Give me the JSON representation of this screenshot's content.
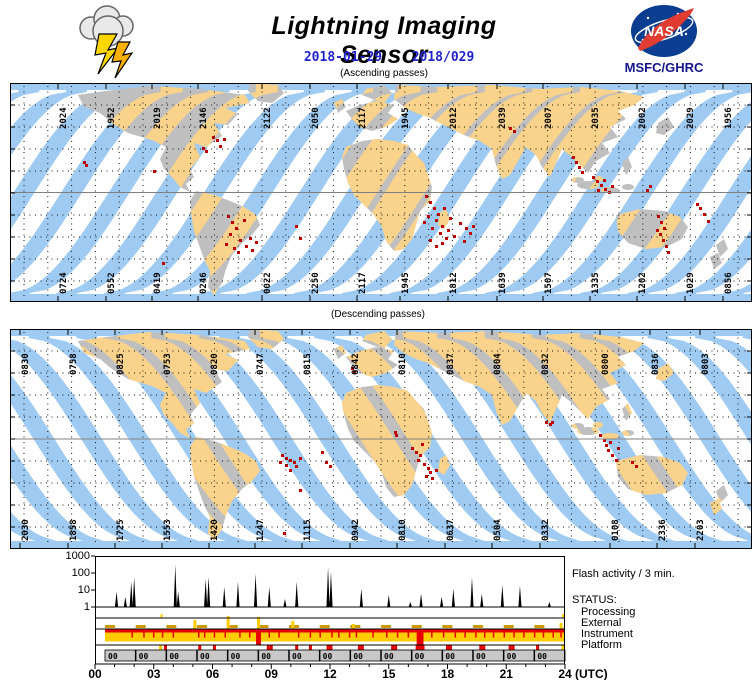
{
  "header": {
    "title": "Lightning Imaging Sensor",
    "date_iso": "2018-01-29",
    "date_doy": "2018/029",
    "org": "MSFC/GHRC",
    "logo_icon": "nasa-meatball",
    "left_icon": "storm-cloud-lightning"
  },
  "colors": {
    "swath_blue": "#9FCBF3",
    "swath_orange": "#F9D38B",
    "land_gray": "#BFBFBF",
    "flash_red": "#C00000",
    "status_yellow": "#FFCC00",
    "status_red": "#E80000",
    "status_gold": "#CC9900",
    "platform_gray": "#C8C8C8",
    "date_blue": "#2222CC",
    "org_navy": "#14148C"
  },
  "maps": [
    {
      "caption": "(Ascending passes)",
      "direction": "ascending",
      "top_labels": [
        [
          "2024",
          48
        ],
        [
          "1952",
          96
        ],
        [
          "2019",
          142
        ],
        [
          "2146",
          188
        ],
        [
          "2122",
          252
        ],
        [
          "2050",
          300
        ],
        [
          "2117",
          347
        ],
        [
          "1945",
          390
        ],
        [
          "2012",
          438
        ],
        [
          "2039",
          487
        ],
        [
          "2007",
          533
        ],
        [
          "2035",
          580
        ],
        [
          "2002",
          627
        ],
        [
          "2029",
          675
        ],
        [
          "1956",
          713
        ]
      ],
      "bottom_labels": [
        [
          "0724",
          48
        ],
        [
          "0552",
          96
        ],
        [
          "0419",
          142
        ],
        [
          "0246",
          188
        ],
        [
          "0022",
          252
        ],
        [
          "2250",
          300
        ],
        [
          "2117",
          347
        ],
        [
          "1945",
          390
        ],
        [
          "1812",
          438
        ],
        [
          "1639",
          487
        ],
        [
          "1507",
          533
        ],
        [
          "1335",
          580
        ],
        [
          "1202",
          627
        ],
        [
          "1029",
          675
        ],
        [
          "0856",
          713
        ]
      ],
      "flash_dots": [
        [
          74,
          79
        ],
        [
          76,
          82
        ],
        [
          144,
          88
        ],
        [
          153,
          180
        ],
        [
          193,
          65
        ],
        [
          196,
          68
        ],
        [
          203,
          54
        ],
        [
          207,
          57
        ],
        [
          210,
          63
        ],
        [
          214,
          56
        ],
        [
          218,
          133
        ],
        [
          222,
          139
        ],
        [
          226,
          145
        ],
        [
          220,
          151
        ],
        [
          230,
          157
        ],
        [
          236,
          163
        ],
        [
          228,
          169
        ],
        [
          216,
          161
        ],
        [
          240,
          155
        ],
        [
          234,
          137
        ],
        [
          224,
          165
        ],
        [
          242,
          167
        ],
        [
          246,
          159
        ],
        [
          286,
          143
        ],
        [
          290,
          155
        ],
        [
          416,
          113
        ],
        [
          420,
          119
        ],
        [
          424,
          125
        ],
        [
          428,
          131
        ],
        [
          426,
          137
        ],
        [
          432,
          143
        ],
        [
          422,
          145
        ],
        [
          430,
          150
        ],
        [
          436,
          155
        ],
        [
          418,
          133
        ],
        [
          414,
          139
        ],
        [
          434,
          125
        ],
        [
          440,
          135
        ],
        [
          438,
          147
        ],
        [
          432,
          160
        ],
        [
          444,
          153
        ],
        [
          450,
          140
        ],
        [
          456,
          145
        ],
        [
          460,
          150
        ],
        [
          454,
          158
        ],
        [
          463,
          143
        ],
        [
          426,
          163
        ],
        [
          420,
          157
        ],
        [
          500,
          45
        ],
        [
          504,
          48
        ],
        [
          563,
          74
        ],
        [
          566,
          79
        ],
        [
          569,
          84
        ],
        [
          572,
          89
        ],
        [
          583,
          94
        ],
        [
          587,
          98
        ],
        [
          591,
          102
        ],
        [
          595,
          106
        ],
        [
          599,
          109
        ],
        [
          588,
          107
        ],
        [
          594,
          97
        ],
        [
          602,
          103
        ],
        [
          637,
          107
        ],
        [
          640,
          103
        ],
        [
          648,
          133
        ],
        [
          651,
          139
        ],
        [
          654,
          145
        ],
        [
          650,
          151
        ],
        [
          653,
          157
        ],
        [
          656,
          163
        ],
        [
          647,
          147
        ],
        [
          690,
          125
        ],
        [
          694,
          131
        ],
        [
          698,
          138
        ],
        [
          658,
          169
        ],
        [
          687,
          121
        ]
      ]
    },
    {
      "caption": "(Descending passes)",
      "direction": "descending",
      "top_labels": [
        [
          "0830",
          10
        ],
        [
          "0758",
          58
        ],
        [
          "0825",
          105
        ],
        [
          "0753",
          152
        ],
        [
          "0820",
          199
        ],
        [
          "0747",
          245
        ],
        [
          "0815",
          292
        ],
        [
          "0842",
          340
        ],
        [
          "0810",
          387
        ],
        [
          "0837",
          435
        ],
        [
          "0804",
          482
        ],
        [
          "0832",
          530
        ],
        [
          "0800",
          590
        ],
        [
          "0836",
          640
        ],
        [
          "0803",
          690
        ]
      ],
      "bottom_labels": [
        [
          "2030",
          10
        ],
        [
          "1858",
          58
        ],
        [
          "1725",
          105
        ],
        [
          "1553",
          152
        ],
        [
          "1420",
          199
        ],
        [
          "1247",
          245
        ],
        [
          "1115",
          292
        ],
        [
          "0942",
          340
        ],
        [
          "0810",
          387
        ],
        [
          "0637",
          435
        ],
        [
          "0504",
          482
        ],
        [
          "0332",
          530
        ],
        [
          "0108",
          600
        ],
        [
          "2336",
          647
        ],
        [
          "2203",
          685
        ]
      ],
      "flash_dots": [
        [
          342,
          39
        ],
        [
          344,
          43
        ],
        [
          272,
          126
        ],
        [
          276,
          129
        ],
        [
          280,
          131
        ],
        [
          284,
          133
        ],
        [
          276,
          136
        ],
        [
          270,
          133
        ],
        [
          286,
          137
        ],
        [
          290,
          129
        ],
        [
          280,
          141
        ],
        [
          312,
          123
        ],
        [
          316,
          133
        ],
        [
          320,
          137
        ],
        [
          290,
          161
        ],
        [
          274,
          204
        ],
        [
          386,
          106
        ],
        [
          402,
          119
        ],
        [
          406,
          123
        ],
        [
          410,
          126
        ],
        [
          408,
          131
        ],
        [
          414,
          135
        ],
        [
          418,
          139
        ],
        [
          420,
          143
        ],
        [
          416,
          147
        ],
        [
          422,
          149
        ],
        [
          426,
          141
        ],
        [
          412,
          115
        ],
        [
          385,
          103
        ],
        [
          536,
          93
        ],
        [
          540,
          95
        ],
        [
          542,
          93
        ],
        [
          590,
          106
        ],
        [
          594,
          111
        ],
        [
          596,
          116
        ],
        [
          598,
          121
        ],
        [
          602,
          126
        ],
        [
          606,
          131
        ],
        [
          600,
          113
        ],
        [
          608,
          119
        ],
        [
          622,
          133
        ],
        [
          626,
          137
        ]
      ]
    }
  ],
  "chart_data": [
    {
      "type": "line",
      "title": "Flash activity / 3 min.",
      "y_ticks": [
        "1000",
        "100",
        "10",
        "1"
      ],
      "y_log": true,
      "ylim": [
        1,
        1000
      ],
      "xlim": [
        0,
        24
      ],
      "x_ticks": [
        "00",
        "03",
        "06",
        "09",
        "12",
        "15",
        "18",
        "21",
        "24"
      ],
      "x_unit": "(UTC)",
      "series": [
        {
          "name": "flash_rate_per_3min",
          "points": [
            [
              1.1,
              8
            ],
            [
              1.55,
              4
            ],
            [
              1.85,
              30
            ],
            [
              2.0,
              55
            ],
            [
              4.1,
              300
            ],
            [
              4.25,
              8
            ],
            [
              5.65,
              45
            ],
            [
              5.8,
              60
            ],
            [
              6.6,
              15
            ],
            [
              7.3,
              30
            ],
            [
              8.2,
              90
            ],
            [
              8.9,
              15
            ],
            [
              9.7,
              3
            ],
            [
              10.3,
              30
            ],
            [
              11.9,
              220
            ],
            [
              12.05,
              120
            ],
            [
              13.6,
              12
            ],
            [
              15.0,
              5
            ],
            [
              16.1,
              2
            ],
            [
              16.65,
              6
            ],
            [
              17.7,
              4
            ],
            [
              18.3,
              12
            ],
            [
              19.25,
              55
            ],
            [
              19.75,
              6
            ],
            [
              20.8,
              20
            ],
            [
              21.7,
              18
            ],
            [
              23.2,
              2
            ]
          ]
        }
      ]
    },
    {
      "type": "status-timeline",
      "title": "STATUS:",
      "rows": [
        "Processing",
        "External",
        "Instrument",
        "Platform"
      ],
      "processing_marks": [
        [
          3.4,
          "y"
        ],
        [
          23.9,
          "y"
        ]
      ],
      "external_spikes": [
        [
          5.1,
          9
        ],
        [
          6.8,
          13
        ],
        [
          8.35,
          12
        ],
        [
          10.1,
          8
        ],
        [
          13.2,
          5
        ],
        [
          23.8,
          6
        ]
      ],
      "instrument_band_hours": [
        0.5,
        24
      ],
      "instrument_fault_ticks": [
        1.9,
        2.5,
        3.0,
        3.45,
        4.0,
        5.3,
        5.6,
        6.1,
        6.65,
        7.4,
        7.9,
        8.9,
        9.4,
        10.4,
        11.0,
        11.5,
        12.1,
        12.45,
        13.0,
        13.35,
        14.2,
        14.9,
        15.45,
        16.0,
        17.2,
        17.8,
        18.4,
        18.9,
        19.45,
        19.9,
        20.35,
        20.9,
        21.4,
        21.9,
        22.45,
        22.9,
        23.4,
        23.8
      ],
      "instrument_outages": [
        [
          8.35,
          0.25
        ],
        [
          16.6,
          0.35
        ]
      ],
      "platform_marks": [
        [
          3.35,
          "y"
        ],
        [
          3.6,
          "r"
        ],
        [
          5.35,
          "r"
        ],
        [
          6.1,
          "r"
        ],
        [
          8.85,
          "r"
        ],
        [
          9.0,
          "r"
        ],
        [
          10.3,
          "r"
        ],
        [
          11.0,
          "r"
        ],
        [
          11.9,
          "r"
        ],
        [
          12.05,
          "r"
        ],
        [
          13.5,
          "r"
        ],
        [
          13.65,
          "r"
        ],
        [
          15.2,
          "r"
        ],
        [
          15.35,
          "r"
        ],
        [
          16.45,
          "r"
        ],
        [
          16.6,
          "r"
        ],
        [
          16.75,
          "r"
        ],
        [
          18.0,
          "r"
        ],
        [
          18.15,
          "r"
        ],
        [
          19.7,
          "r"
        ],
        [
          19.85,
          "r"
        ],
        [
          21.2,
          "r"
        ],
        [
          21.35,
          "r"
        ],
        [
          22.6,
          "r"
        ],
        [
          23.9,
          "y"
        ]
      ],
      "orbit_segments": {
        "count": 15,
        "label": "00",
        "start_hour": 0.5,
        "end_hour": 24
      }
    }
  ]
}
